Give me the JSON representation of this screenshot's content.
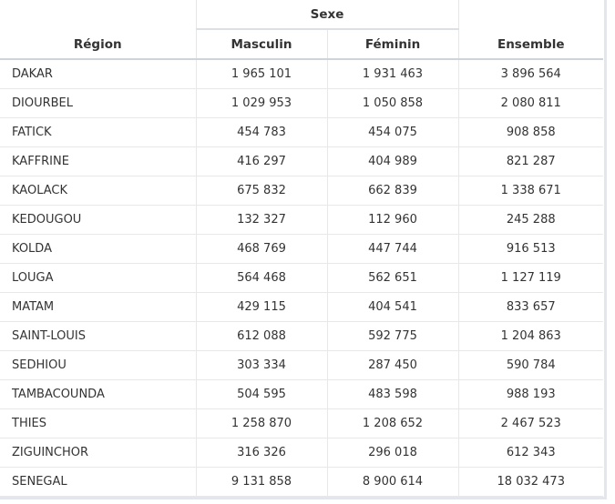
{
  "table": {
    "headers": {
      "region": "Région",
      "group": "Sexe",
      "male": "Masculin",
      "female": "Féminin",
      "total": "Ensemble"
    },
    "rows": [
      {
        "region": "DAKAR",
        "male": "1 965 101",
        "female": "1 931 463",
        "total": "3 896 564"
      },
      {
        "region": "DIOURBEL",
        "male": "1 029 953",
        "female": "1 050 858",
        "total": "2 080 811"
      },
      {
        "region": "FATICK",
        "male": "454 783",
        "female": "454 075",
        "total": "908 858"
      },
      {
        "region": "KAFFRINE",
        "male": "416 297",
        "female": "404 989",
        "total": "821 287"
      },
      {
        "region": "KAOLACK",
        "male": "675 832",
        "female": "662 839",
        "total": "1 338 671"
      },
      {
        "region": "KEDOUGOU",
        "male": "132 327",
        "female": "112 960",
        "total": "245 288"
      },
      {
        "region": "KOLDA",
        "male": "468 769",
        "female": "447 744",
        "total": "916 513"
      },
      {
        "region": "LOUGA",
        "male": "564 468",
        "female": "562 651",
        "total": "1 127 119"
      },
      {
        "region": "MATAM",
        "male": "429 115",
        "female": "404 541",
        "total": "833 657"
      },
      {
        "region": "SAINT-LOUIS",
        "male": "612 088",
        "female": "592 775",
        "total": "1 204 863"
      },
      {
        "region": "SEDHIOU",
        "male": "303 334",
        "female": "287 450",
        "total": "590 784"
      },
      {
        "region": "TAMBACOUNDA",
        "male": "504 595",
        "female": "483 598",
        "total": "988 193"
      },
      {
        "region": "THIES",
        "male": "1 258 870",
        "female": "1 208 652",
        "total": "2 467 523"
      },
      {
        "region": "ZIGUINCHOR",
        "male": "316 326",
        "female": "296 018",
        "total": "612 343"
      },
      {
        "region": "SENEGAL",
        "male": "9 131 858",
        "female": "8 900 614",
        "total": "18 032 473"
      }
    ]
  }
}
